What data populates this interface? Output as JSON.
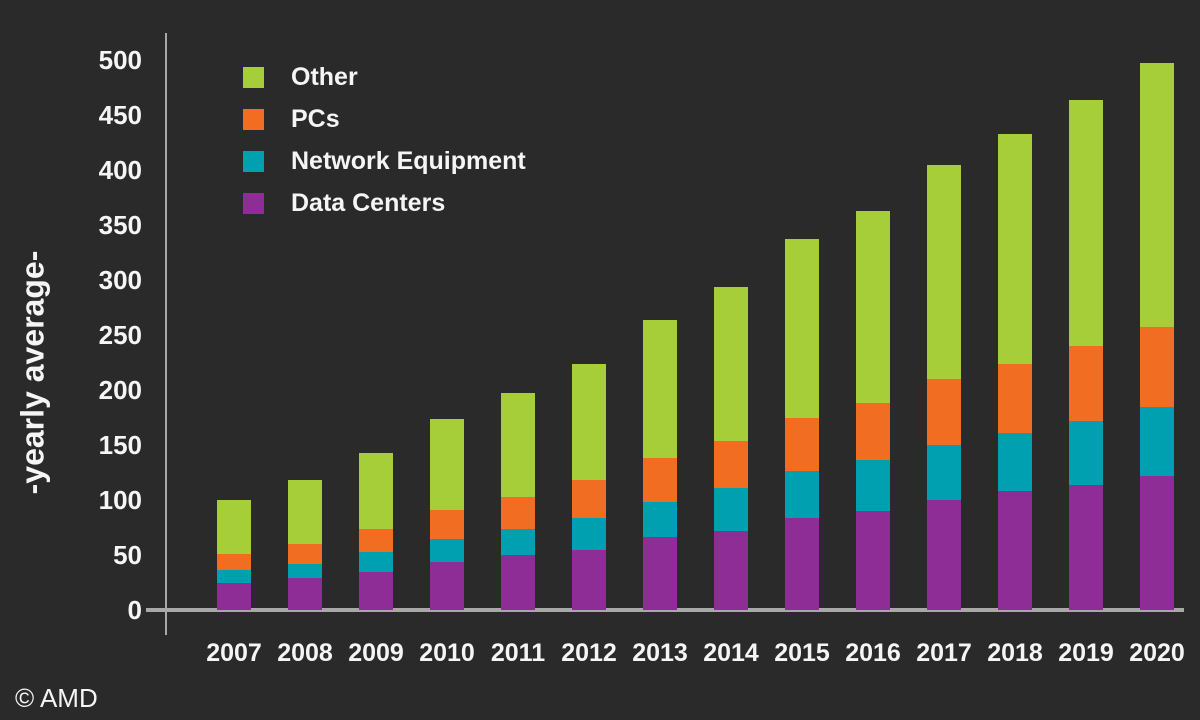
{
  "watermark": "© AMD",
  "colors": {
    "bg": "#2a2a2a",
    "axis": "#a8a8a8",
    "text": "#f5f5f5"
  },
  "chart_data": {
    "type": "bar",
    "stacked": true,
    "title": "",
    "xlabel": "",
    "ylabel": "-yearly average-",
    "ylim": [
      0,
      500
    ],
    "yticks": [
      0,
      50,
      100,
      150,
      200,
      250,
      300,
      350,
      400,
      450,
      500
    ],
    "grid": false,
    "legend_position": "top-left",
    "legend_order": [
      "Other",
      "PCs",
      "Network Equipment",
      "Data Centers"
    ],
    "categories": [
      "2007",
      "2008",
      "2009",
      "2010",
      "2011",
      "2012",
      "2013",
      "2014",
      "2015",
      "2016",
      "2017",
      "2018",
      "2019",
      "2020"
    ],
    "series": [
      {
        "name": "Data Centers",
        "color": "#8e2d96",
        "values": [
          25,
          29,
          35,
          44,
          50,
          55,
          66,
          72,
          84,
          90,
          100,
          108,
          114,
          122
        ]
      },
      {
        "name": "Network Equipment",
        "color": "#00a0b0",
        "values": [
          11,
          13,
          18,
          21,
          24,
          29,
          32,
          39,
          42,
          46,
          50,
          53,
          58,
          63
        ]
      },
      {
        "name": "PCs",
        "color": "#f06d22",
        "values": [
          15,
          18,
          21,
          26,
          29,
          34,
          40,
          43,
          49,
          52,
          60,
          63,
          68,
          72
        ]
      },
      {
        "name": "Other",
        "color": "#a6ce39",
        "values": [
          49,
          58,
          69,
          83,
          94,
          106,
          126,
          140,
          162,
          175,
          195,
          209,
          224,
          240
        ]
      }
    ],
    "totals": [
      100,
      118,
      143,
      174,
      197,
      224,
      264,
      294,
      337,
      363,
      405,
      433,
      464,
      497
    ]
  }
}
